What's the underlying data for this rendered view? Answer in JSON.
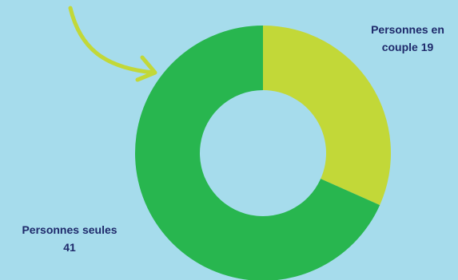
{
  "chart_data": {
    "type": "pie",
    "donut": true,
    "slices": [
      {
        "label": "Personnes en couple",
        "value": 19,
        "color": "#c2d838"
      },
      {
        "label": "Personnes seules",
        "value": 41,
        "color": "#28b64f"
      }
    ],
    "title": "",
    "legend": "none",
    "arrow_color": "#c2d838"
  },
  "labels": {
    "couple": {
      "line1": "Personnes en",
      "line2": "couple 19"
    },
    "seules": {
      "line1": "Personnes seules",
      "line2": "41"
    }
  }
}
